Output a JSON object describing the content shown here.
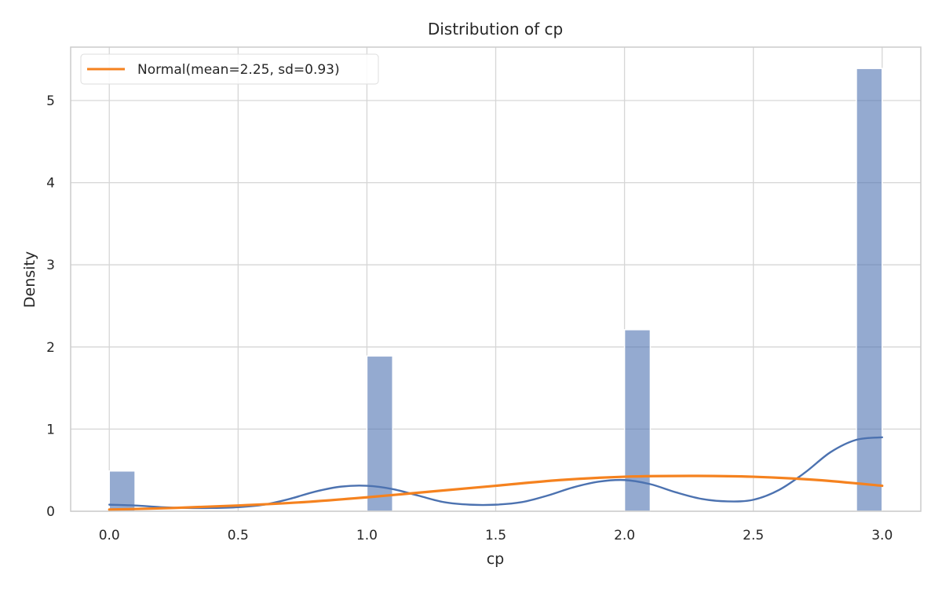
{
  "chart_data": {
    "type": "bar",
    "title": "Distribution of cp",
    "xlabel": "cp",
    "ylabel": "Density",
    "xlim": [
      -0.15,
      3.15
    ],
    "ylim": [
      0,
      5.65
    ],
    "xticks": [
      0.0,
      0.5,
      1.0,
      1.5,
      2.0,
      2.5,
      3.0
    ],
    "xtick_labels": [
      "0.0",
      "0.5",
      "1.0",
      "1.5",
      "2.0",
      "2.5",
      "3.0"
    ],
    "yticks": [
      0,
      1,
      2,
      3,
      4,
      5
    ],
    "ytick_labels": [
      "0",
      "1",
      "2",
      "3",
      "4",
      "5"
    ],
    "grid": true,
    "legend_position": "top-left",
    "histogram": {
      "bins": [
        {
          "x0": 0.0,
          "x1": 0.1,
          "density": 0.49
        },
        {
          "x0": 1.0,
          "x1": 1.1,
          "density": 1.89
        },
        {
          "x0": 2.0,
          "x1": 2.1,
          "density": 2.21
        },
        {
          "x0": 2.9,
          "x1": 3.0,
          "density": 5.39
        }
      ],
      "color": "#4c72b0"
    },
    "series": [
      {
        "type": "line",
        "color": "#4c72b0",
        "x": [
          0.0,
          0.1,
          0.2,
          0.3,
          0.4,
          0.5,
          0.6,
          0.7,
          0.8,
          0.9,
          1.0,
          1.1,
          1.2,
          1.3,
          1.4,
          1.5,
          1.6,
          1.7,
          1.8,
          1.9,
          2.0,
          2.1,
          2.2,
          2.3,
          2.4,
          2.5,
          2.6,
          2.7,
          2.8,
          2.9,
          3.0
        ],
        "y": [
          0.08,
          0.07,
          0.05,
          0.04,
          0.04,
          0.05,
          0.08,
          0.15,
          0.24,
          0.3,
          0.31,
          0.27,
          0.19,
          0.11,
          0.08,
          0.08,
          0.11,
          0.19,
          0.29,
          0.36,
          0.38,
          0.33,
          0.23,
          0.15,
          0.12,
          0.14,
          0.26,
          0.47,
          0.72,
          0.87,
          0.9
        ]
      },
      {
        "name": "Normal(mean=2.25, sd=0.93)",
        "type": "line",
        "color": "#f5821f",
        "x": [
          0.0,
          0.25,
          0.5,
          0.75,
          1.0,
          1.25,
          1.5,
          1.75,
          2.0,
          2.25,
          2.5,
          2.75,
          3.0
        ],
        "y": [
          0.02,
          0.04,
          0.07,
          0.11,
          0.17,
          0.24,
          0.31,
          0.38,
          0.42,
          0.43,
          0.42,
          0.38,
          0.31
        ]
      }
    ]
  }
}
